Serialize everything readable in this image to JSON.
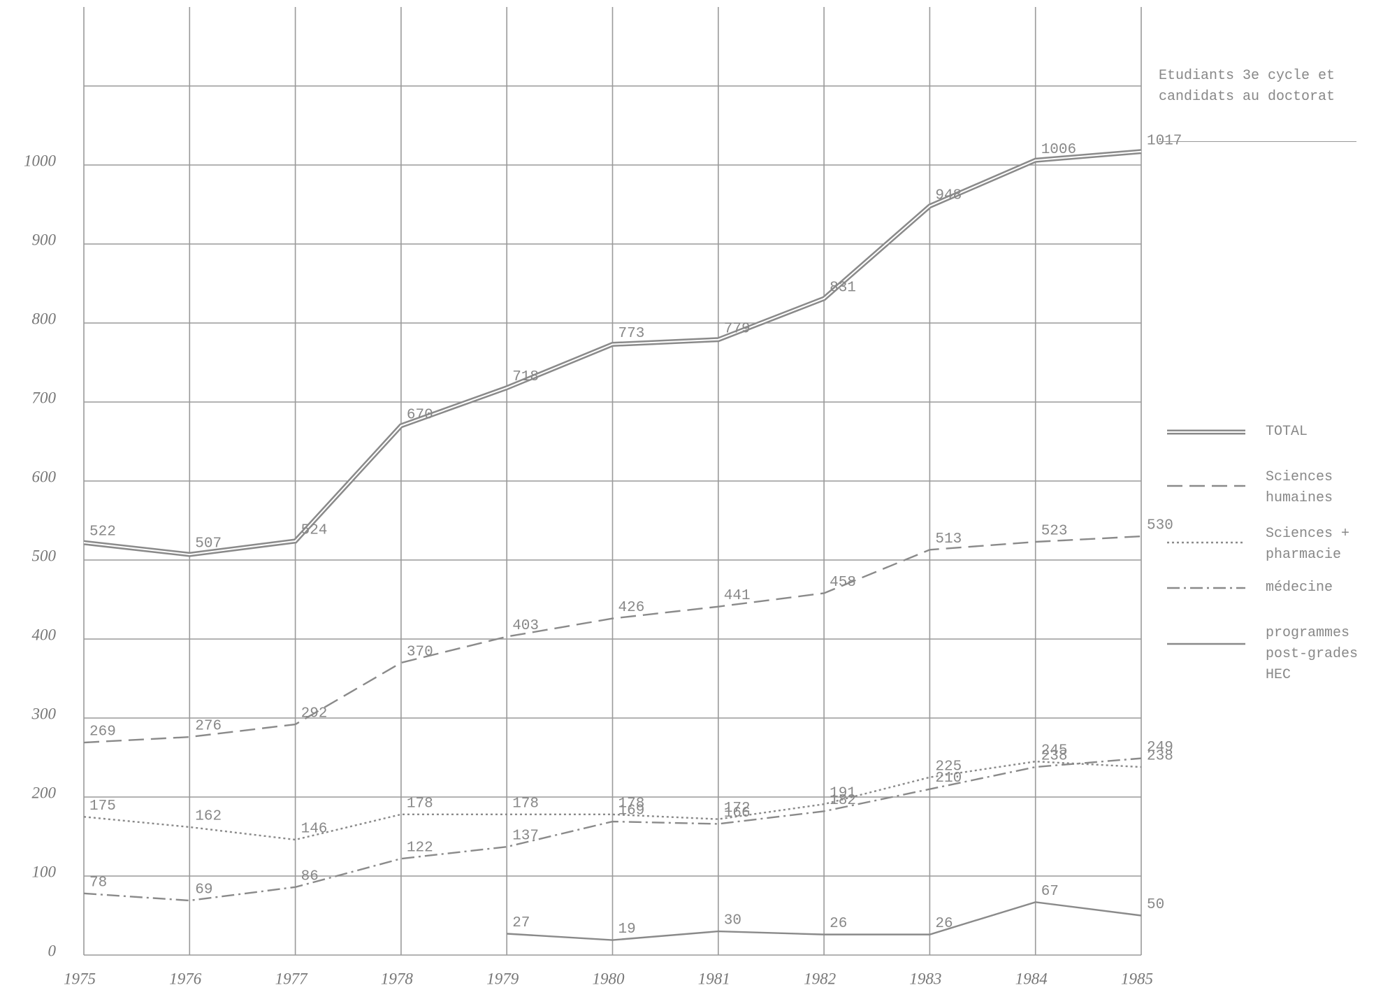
{
  "chart_data": {
    "type": "line",
    "legend_title": "Etudiants 3e cycle et candidats au doctorat",
    "x": [
      1975,
      1976,
      1977,
      1978,
      1979,
      1980,
      1981,
      1982,
      1983,
      1984,
      1985
    ],
    "xlim": [
      1975,
      1985
    ],
    "xticks": [
      1975,
      1976,
      1977,
      1978,
      1979,
      1980,
      1981,
      1982,
      1983,
      1984,
      1985
    ],
    "ylim": [
      0,
      1200
    ],
    "yticks": [
      0,
      100,
      200,
      300,
      400,
      500,
      600,
      700,
      800,
      900,
      1000
    ],
    "ygrid": [
      0,
      100,
      200,
      300,
      400,
      500,
      600,
      700,
      800,
      900,
      1000,
      1100
    ],
    "grid": true,
    "legend": "right",
    "series": [
      {
        "name": "TOTAL",
        "color": "#8a8a8a",
        "style": "double",
        "values": [
          522,
          507,
          524,
          670,
          718,
          773,
          779,
          831,
          948,
          1006,
          1017
        ]
      },
      {
        "name": "Sciences humaines",
        "color": "#8a8a8a",
        "style": "dashed",
        "values": [
          269,
          276,
          292,
          370,
          403,
          426,
          441,
          458,
          513,
          523,
          530
        ]
      },
      {
        "name": "Sciences + pharmacie",
        "color": "#8a8a8a",
        "style": "dotted",
        "values": [
          175,
          162,
          146,
          178,
          178,
          178,
          172,
          191,
          225,
          245,
          238
        ]
      },
      {
        "name": "médecine",
        "color": "#8a8a8a",
        "style": "dashdot",
        "values": [
          78,
          69,
          86,
          122,
          137,
          169,
          166,
          182,
          210,
          238,
          249
        ]
      },
      {
        "name": "programmes post-grades HEC",
        "color": "#8a8a8a",
        "style": "solid",
        "values": [
          null,
          null,
          null,
          null,
          27,
          19,
          30,
          26,
          26,
          67,
          50
        ]
      }
    ]
  }
}
